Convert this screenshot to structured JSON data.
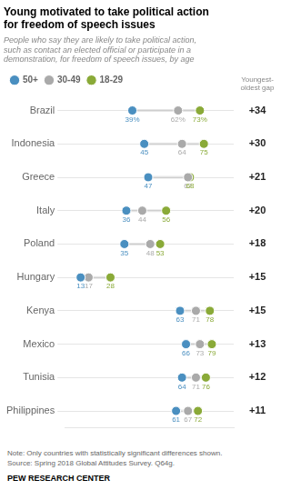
{
  "chart_data": {
    "type": "dumbbell",
    "title": "Young motivated to take political action\nfor freedom of speech issues",
    "subtitle": "People who say they are likely to take political action,\nsuch as contact an elected official or participate in a\ndemonstration, for freedom of speech issues, by age",
    "note": "Note: Only countries with statistically significant differences shown.\nSource: Spring 2018 Global Attitudes Survey. Q64g.",
    "source": "PEW RESEARCH CENTER",
    "categories": [
      "Brazil",
      "Indonesia",
      "Greece",
      "Italy",
      "Poland",
      "Hungary",
      "Kenya",
      "Mexico",
      "Tunisia",
      "Philippines"
    ],
    "series": [
      {
        "name": "50+",
        "color": "#4a8fc0",
        "marker": "circle",
        "values": [
          39,
          45,
          47,
          36,
          35,
          13,
          63,
          66,
          64,
          61
        ],
        "value_labels": [
          "39%",
          "45",
          "47",
          "36",
          "35",
          "13",
          "63",
          "66",
          "64",
          "61"
        ]
      },
      {
        "name": "30-49",
        "color": "#aaaaaa",
        "marker": "circle",
        "values": [
          62,
          64,
          67,
          44,
          48,
          17,
          71,
          73,
          71,
          67
        ],
        "value_labels": [
          "62%",
          "64",
          "67",
          "44",
          "48",
          "17",
          "71",
          "73",
          "71",
          "67"
        ]
      },
      {
        "name": "18-29",
        "color": "#8aaa38",
        "marker": "circle",
        "values": [
          73,
          75,
          68,
          56,
          53,
          28,
          78,
          79,
          76,
          72
        ],
        "value_labels": [
          "73%",
          "75",
          "68",
          "56",
          "53",
          "28",
          "78",
          "79",
          "76",
          "72"
        ]
      }
    ],
    "gap_column": {
      "title": "Youngest-\noldest gap",
      "values": [
        34,
        30,
        21,
        20,
        18,
        15,
        15,
        13,
        12,
        11
      ],
      "value_labels": [
        "+34",
        "+30",
        "+21",
        "+20",
        "+18",
        "+15",
        "+15",
        "+13",
        "+12",
        "+11"
      ]
    },
    "xlim": [
      5,
      90
    ],
    "tick_labels": "y",
    "grid": true,
    "legend": "top",
    "data_labels": true
  }
}
